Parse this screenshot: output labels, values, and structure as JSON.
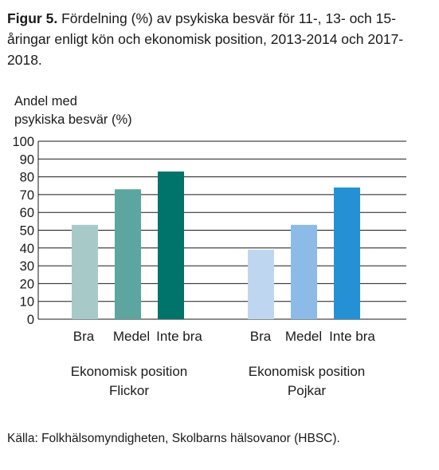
{
  "figure": {
    "label": "Figur 5.",
    "caption": "Fördelning (%) av psykiska besvär för 11-, 13- och 15- åringar enligt kön och ekonomisk position, 2013-2014 och 2017-2018."
  },
  "source": "Källa: Folkhälsomyndigheten, Skolbarns hälsovanor (HBSC).",
  "chart_data": {
    "type": "bar",
    "ylabel_lines": [
      "Andel med",
      "psykiska besvär (%)"
    ],
    "ylim": [
      0,
      100
    ],
    "yticks": [
      0,
      10,
      20,
      30,
      40,
      50,
      60,
      70,
      80,
      90,
      100
    ],
    "grid": true,
    "groups": [
      {
        "label_lines": [
          "Ekonomisk position",
          "Flickor"
        ],
        "bars": [
          {
            "category": "Bra",
            "value": 53,
            "color": "#a7cac8"
          },
          {
            "category": "Medel",
            "value": 73,
            "color": "#5da59f"
          },
          {
            "category": "Inte bra",
            "value": 83,
            "color": "#00736b"
          }
        ]
      },
      {
        "label_lines": [
          "Ekonomisk position",
          "Pojkar"
        ],
        "bars": [
          {
            "category": "Bra",
            "value": 39,
            "color": "#bed6ef"
          },
          {
            "category": "Medel",
            "value": 53,
            "color": "#8bbbe6"
          },
          {
            "category": "Inte bra",
            "value": 74,
            "color": "#2591d4"
          }
        ]
      }
    ]
  }
}
